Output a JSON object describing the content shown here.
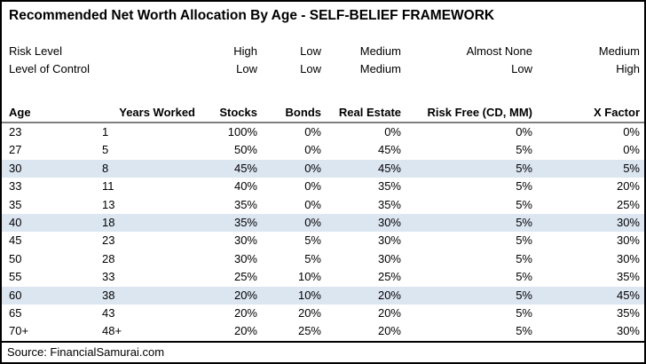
{
  "chart_data": {
    "type": "table",
    "title": "Recommended Net Worth Allocation By Age - SELF-BELIEF FRAMEWORK",
    "meta_rows": [
      {
        "label": "Risk Level",
        "values": [
          "High",
          "Low",
          "Medium",
          "Almost None",
          "Medium"
        ]
      },
      {
        "label": "Level of Control",
        "values": [
          "Low",
          "Low",
          "Medium",
          "Low",
          "High"
        ]
      }
    ],
    "columns": [
      "Age",
      "Years Worked",
      "Stocks",
      "Bonds",
      "Real Estate",
      "Risk Free (CD, MM)",
      "X Factor"
    ],
    "rows": [
      {
        "cells": [
          "23",
          "1",
          "100%",
          "0%",
          "0%",
          "0%",
          "0%"
        ],
        "highlight": false
      },
      {
        "cells": [
          "27",
          "5",
          "50%",
          "0%",
          "45%",
          "5%",
          "0%"
        ],
        "highlight": false
      },
      {
        "cells": [
          "30",
          "8",
          "45%",
          "0%",
          "45%",
          "5%",
          "5%"
        ],
        "highlight": true
      },
      {
        "cells": [
          "33",
          "11",
          "40%",
          "0%",
          "35%",
          "5%",
          "20%"
        ],
        "highlight": false
      },
      {
        "cells": [
          "35",
          "13",
          "35%",
          "0%",
          "35%",
          "5%",
          "25%"
        ],
        "highlight": false
      },
      {
        "cells": [
          "40",
          "18",
          "35%",
          "0%",
          "30%",
          "5%",
          "30%"
        ],
        "highlight": true
      },
      {
        "cells": [
          "45",
          "23",
          "30%",
          "5%",
          "30%",
          "5%",
          "30%"
        ],
        "highlight": false
      },
      {
        "cells": [
          "50",
          "28",
          "30%",
          "5%",
          "30%",
          "5%",
          "30%"
        ],
        "highlight": false
      },
      {
        "cells": [
          "55",
          "33",
          "25%",
          "10%",
          "25%",
          "5%",
          "35%"
        ],
        "highlight": false
      },
      {
        "cells": [
          "60",
          "38",
          "20%",
          "10%",
          "20%",
          "5%",
          "45%"
        ],
        "highlight": true
      },
      {
        "cells": [
          "65",
          "43",
          "20%",
          "20%",
          "20%",
          "5%",
          "35%"
        ],
        "highlight": false
      },
      {
        "cells": [
          "70+",
          "48+",
          "20%",
          "25%",
          "20%",
          "5%",
          "30%"
        ],
        "highlight": false
      }
    ],
    "highlighted_ages": [
      "30",
      "40",
      "60"
    ],
    "source": "Source: FinancialSamurai.com",
    "legend_position": "none",
    "grid": "off"
  },
  "colors": {
    "highlight_row": "#dce6f1",
    "header_rule": "#808080",
    "outer_border": "#000000",
    "text": "#000000",
    "background": "#ffffff"
  }
}
